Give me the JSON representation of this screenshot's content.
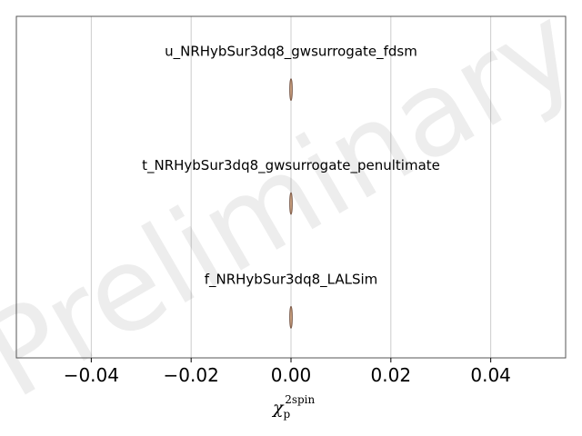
{
  "chart_data": {
    "type": "violin",
    "title": "",
    "xlabel": {
      "symbol": "χ",
      "subscript": "p",
      "superscript": "2spin"
    },
    "ylabel": "",
    "xlim": [
      -0.055,
      0.055
    ],
    "xticks": [
      -0.04,
      -0.02,
      0.0,
      0.02,
      0.04
    ],
    "xtick_labels": [
      "−0.04",
      "−0.02",
      "0.00",
      "0.02",
      "0.04"
    ],
    "grid": "vertical",
    "series": [
      {
        "name": "u_NRHybSur3dq8_gwsurrogate_fdsm",
        "center": 0.0,
        "min": -0.0002,
        "max": 0.0002
      },
      {
        "name": "t_NRHybSur3dq8_gwsurrogate_penultimate",
        "center": 0.0,
        "min": -0.0002,
        "max": 0.0002
      },
      {
        "name": "f_NRHybSur3dq8_LALSim",
        "center": 0.0,
        "min": -0.0002,
        "max": 0.0002
      }
    ],
    "violin_color": "#c49a7a",
    "violin_edge_color": "#6b4a3a"
  },
  "watermark": "Preliminary"
}
